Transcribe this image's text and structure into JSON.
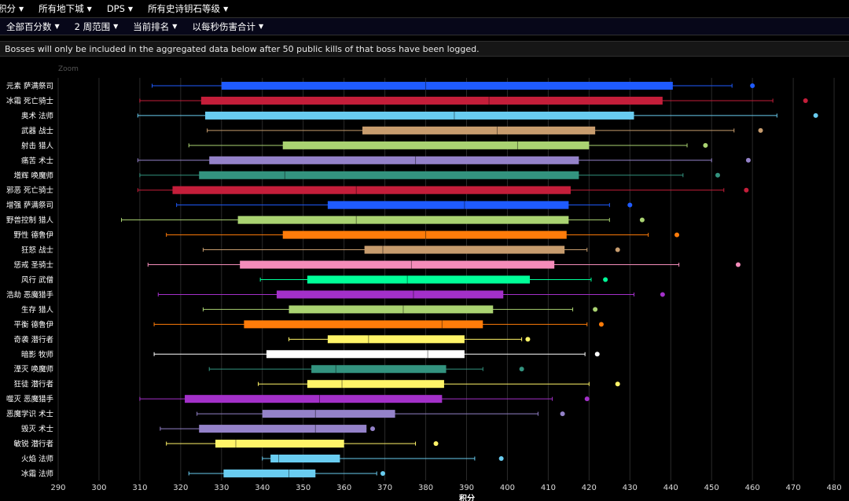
{
  "nav": {
    "row1": [
      {
        "label": "积分"
      },
      {
        "label": "所有地下城"
      },
      {
        "label": "DPS"
      },
      {
        "label": "所有史诗钥石等级"
      }
    ],
    "row2": [
      {
        "label": "全部百分数"
      },
      {
        "label": "2 周范围"
      },
      {
        "label": "当前排名"
      },
      {
        "label": "以每秒伤害合计"
      }
    ]
  },
  "notice": "Bosses will only be included in the aggregated data below after 50 public kills of that boss have been logged.",
  "zoom_label": "Zoom",
  "chart_data": {
    "type": "boxplot",
    "xlabel": "积分",
    "xlim": [
      290,
      480
    ],
    "xticks": [
      290,
      300,
      310,
      320,
      330,
      340,
      350,
      360,
      370,
      380,
      390,
      400,
      410,
      420,
      430,
      440,
      450,
      460,
      470,
      480
    ],
    "grid": true,
    "categories": [
      "元素 萨满祭司",
      "冰霜 死亡骑士",
      "奥术 法师",
      "武器 战士",
      "射击 猎人",
      "痛苦 术士",
      "增辉 唤魔师",
      "邪恶 死亡骑士",
      "增强 萨满祭司",
      "野兽控制 猎人",
      "野性 德鲁伊",
      "狂怒 战士",
      "惩戒 圣骑士",
      "风行 武僧",
      "浩劫 恶魔猎手",
      "生存 猎人",
      "平衡 德鲁伊",
      "奇袭 潜行者",
      "暗影 牧师",
      "湮灭 唤魔师",
      "狂徒 潜行者",
      "噬灭 恶魔猎手",
      "恶魔学识 术士",
      "毁灭 术士",
      "敏锐 潜行者",
      "火焰 法师",
      "冰霜 法师"
    ],
    "colors": [
      "#1f5bff",
      "#c41e3a",
      "#69ccf0",
      "#c79c6e",
      "#aad372",
      "#9482c9",
      "#33937f",
      "#c41e3a",
      "#1f5bff",
      "#aad372",
      "#ff7c0a",
      "#c79c6e",
      "#f48cba",
      "#00ff98",
      "#a330c9",
      "#aad372",
      "#ff7c0a",
      "#fff468",
      "#ffffff",
      "#33937f",
      "#fff468",
      "#a330c9",
      "#9482c9",
      "#9482c9",
      "#fff468",
      "#69ccf0",
      "#69ccf0"
    ],
    "series": [
      {
        "min": 313,
        "q1": 330,
        "median": 380,
        "q3": 440.5,
        "max": 455,
        "outlier": 460
      },
      {
        "min": 310,
        "q1": 325,
        "median": 395.5,
        "q3": 438,
        "max": 465,
        "outlier": 473
      },
      {
        "min": 309.5,
        "q1": 326,
        "median": 387,
        "q3": 431,
        "max": 466,
        "outlier": 475.5
      },
      {
        "min": 326.5,
        "q1": 364.5,
        "median": 397.5,
        "q3": 421.5,
        "max": 455.5,
        "outlier": 462
      },
      {
        "min": 322,
        "q1": 345,
        "median": 402.5,
        "q3": 420,
        "max": 444,
        "outlier": 448.5
      },
      {
        "min": 309.5,
        "q1": 327,
        "median": 377.5,
        "q3": 417.5,
        "max": 450,
        "outlier": 459
      },
      {
        "min": 310,
        "q1": 324.5,
        "median": 345.5,
        "q3": 417.5,
        "max": 443,
        "outlier": 451.5
      },
      {
        "min": 309.5,
        "q1": 318,
        "median": 363,
        "q3": 415.5,
        "max": 453,
        "outlier": 458.5
      },
      {
        "min": 319,
        "q1": 356,
        "median": 389.5,
        "q3": 415,
        "max": 425,
        "outlier": 430
      },
      {
        "min": 305.5,
        "q1": 334,
        "median": 363,
        "q3": 415,
        "max": 425,
        "outlier": 433
      },
      {
        "min": 316.5,
        "q1": 345,
        "median": 380,
        "q3": 414.5,
        "max": 434.5,
        "outlier": 441.5
      },
      {
        "min": 325.5,
        "q1": 365,
        "median": 369.5,
        "q3": 414,
        "max": 419.5,
        "outlier": 427
      },
      {
        "min": 312,
        "q1": 334.5,
        "median": 376.5,
        "q3": 411.5,
        "max": 442,
        "outlier": 456.5
      },
      {
        "min": 339.5,
        "q1": 351,
        "median": 375.5,
        "q3": 405.5,
        "max": 420.5,
        "outlier": 424
      },
      {
        "min": 314.5,
        "q1": 343.5,
        "median": 377,
        "q3": 399,
        "max": 431,
        "outlier": 438
      },
      {
        "min": 325.5,
        "q1": 346.5,
        "median": 374.5,
        "q3": 396.5,
        "max": 416,
        "outlier": 421.5
      },
      {
        "min": 313.5,
        "q1": 335.5,
        "median": 384,
        "q3": 394,
        "max": 419.5,
        "outlier": 423
      },
      {
        "min": 346.5,
        "q1": 356,
        "median": 366,
        "q3": 389.5,
        "max": 403.5,
        "outlier": 405
      },
      {
        "min": 313.5,
        "q1": 341,
        "median": 380.5,
        "q3": 389.5,
        "max": 419,
        "outlier": 422
      },
      {
        "min": 327,
        "q1": 352,
        "median": 358,
        "q3": 385,
        "max": 394,
        "outlier": 403.5
      },
      {
        "min": 339,
        "q1": 351,
        "median": 359.5,
        "q3": 384.5,
        "max": 420,
        "outlier": 427
      },
      {
        "min": 310,
        "q1": 321,
        "median": 354,
        "q3": 384,
        "max": 411,
        "outlier": 419.5
      },
      {
        "min": 324,
        "q1": 340,
        "median": 353,
        "q3": 372.5,
        "max": 407.5,
        "outlier": 413.5
      },
      {
        "min": 315,
        "q1": 324.5,
        "median": 353,
        "q3": 365.5,
        "max": null,
        "outlier": 367
      },
      {
        "min": 316.5,
        "q1": 328.5,
        "median": 333.5,
        "q3": 360,
        "max": 377.5,
        "outlier": 382.5
      },
      {
        "min": 340,
        "q1": 342,
        "median": 344,
        "q3": 359,
        "max": 392,
        "outlier": 398.5
      },
      {
        "min": 322,
        "q1": 330.5,
        "median": 346.5,
        "q3": 353,
        "max": 368,
        "outlier": 369.5
      }
    ]
  }
}
